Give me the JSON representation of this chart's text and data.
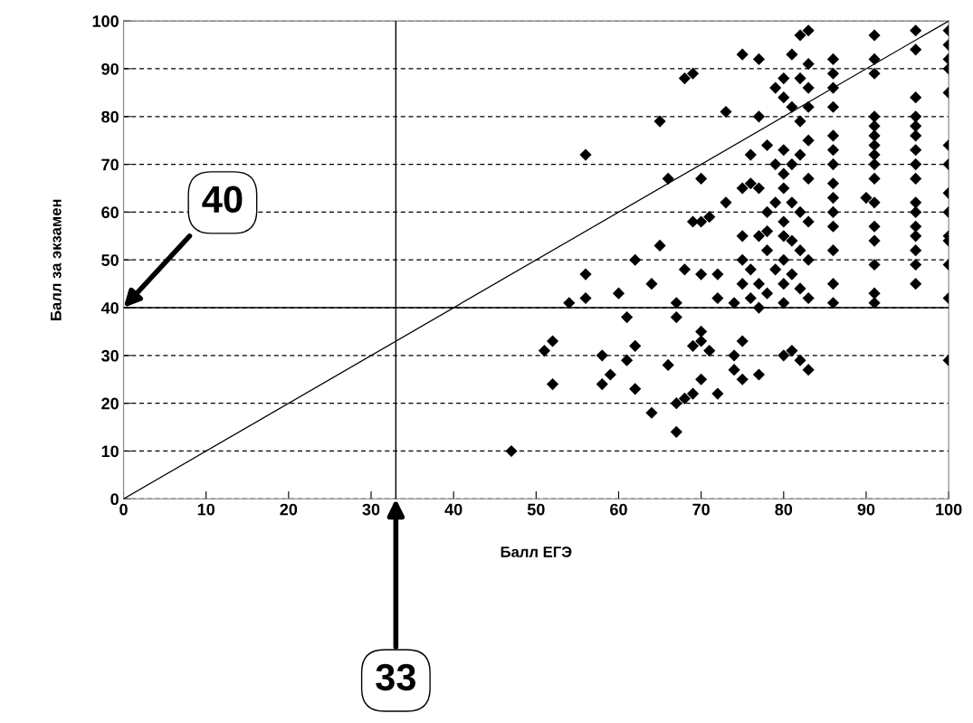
{
  "chart_data": {
    "type": "scatter",
    "xlabel": "Балл ЕГЭ",
    "ylabel": "Балл за экзамен",
    "xlim": [
      0,
      100
    ],
    "ylim": [
      0,
      100
    ],
    "xticks": [
      0,
      10,
      20,
      30,
      40,
      50,
      60,
      70,
      80,
      90,
      100
    ],
    "yticks": [
      0,
      10,
      20,
      30,
      40,
      50,
      60,
      70,
      80,
      90,
      100
    ],
    "grid": "y",
    "ref_lines": [
      {
        "axis": "x",
        "value": 33,
        "label": "33",
        "color": "#000000"
      },
      {
        "axis": "y",
        "value": 40,
        "label": "40",
        "color": "#000000"
      }
    ],
    "series": [
      {
        "marker": "diamond",
        "color": "#000000",
        "x": [
          47,
          51,
          52,
          54,
          52,
          56,
          56,
          56,
          58,
          58,
          59,
          60,
          61,
          61,
          62,
          62,
          62,
          64,
          64,
          65,
          65,
          66,
          66,
          67,
          67,
          67,
          67,
          68,
          68,
          68,
          69,
          69,
          69,
          69,
          70,
          70,
          70,
          70,
          70,
          70,
          71,
          71,
          72,
          72,
          72,
          73,
          73,
          74,
          74,
          74,
          75,
          75,
          75,
          75,
          75,
          75,
          75,
          76,
          76,
          76,
          76,
          77,
          77,
          77,
          77,
          77,
          77,
          77,
          78,
          78,
          78,
          78,
          78,
          79,
          79,
          79,
          79,
          80,
          80,
          80,
          80,
          80,
          80,
          80,
          80,
          80,
          80,
          80,
          81,
          81,
          81,
          81,
          81,
          81,
          81,
          82,
          82,
          82,
          82,
          82,
          82,
          82,
          82,
          83,
          83,
          83,
          83,
          83,
          83,
          83,
          83,
          83,
          83,
          86,
          86,
          86,
          86,
          86,
          86,
          86,
          86,
          86,
          86,
          86,
          86,
          86,
          86,
          90,
          91,
          91,
          91,
          91,
          91,
          91,
          91,
          91,
          91,
          91,
          91,
          91,
          91,
          91,
          91,
          91,
          96,
          96,
          96,
          96,
          96,
          96,
          96,
          96,
          96,
          96,
          96,
          96,
          96,
          96,
          96,
          96,
          100,
          100,
          100,
          100,
          100,
          100,
          100,
          100,
          100,
          100,
          100,
          100,
          100,
          100
        ],
        "values": [
          10,
          31,
          33,
          41,
          24,
          47,
          42,
          72,
          24,
          30,
          26,
          43,
          29,
          38,
          23,
          32,
          50,
          18,
          45,
          53,
          79,
          28,
          67,
          14,
          20,
          38,
          41,
          21,
          88,
          48,
          22,
          32,
          58,
          89,
          33,
          35,
          25,
          47,
          58,
          67,
          59,
          31,
          22,
          42,
          47,
          62,
          81,
          30,
          41,
          27,
          33,
          25,
          93,
          45,
          50,
          55,
          65,
          66,
          72,
          48,
          42,
          26,
          92,
          80,
          65,
          55,
          45,
          40,
          52,
          56,
          60,
          74,
          43,
          86,
          70,
          62,
          48,
          88,
          84,
          73,
          68,
          65,
          58,
          55,
          50,
          45,
          41,
          30,
          31,
          93,
          82,
          70,
          62,
          54,
          47,
          97,
          88,
          79,
          72,
          60,
          52,
          44,
          29,
          98,
          91,
          86,
          82,
          75,
          67,
          58,
          50,
          42,
          27,
          92,
          89,
          86,
          82,
          76,
          73,
          70,
          66,
          63,
          60,
          57,
          52,
          45,
          41,
          63,
          97,
          92,
          89,
          80,
          78,
          76,
          74,
          72,
          70,
          67,
          62,
          57,
          54,
          49,
          43,
          41,
          98,
          94,
          84,
          80,
          78,
          76,
          73,
          70,
          67,
          62,
          60,
          57,
          55,
          52,
          49,
          45,
          98,
          95,
          92,
          90,
          85,
          74,
          70,
          64,
          60,
          55,
          54,
          49,
          42,
          29
        ]
      },
      {
        "type": "line",
        "marker": "none",
        "color": "#000000",
        "x": [
          0,
          100
        ],
        "values": [
          0,
          100
        ]
      }
    ]
  }
}
